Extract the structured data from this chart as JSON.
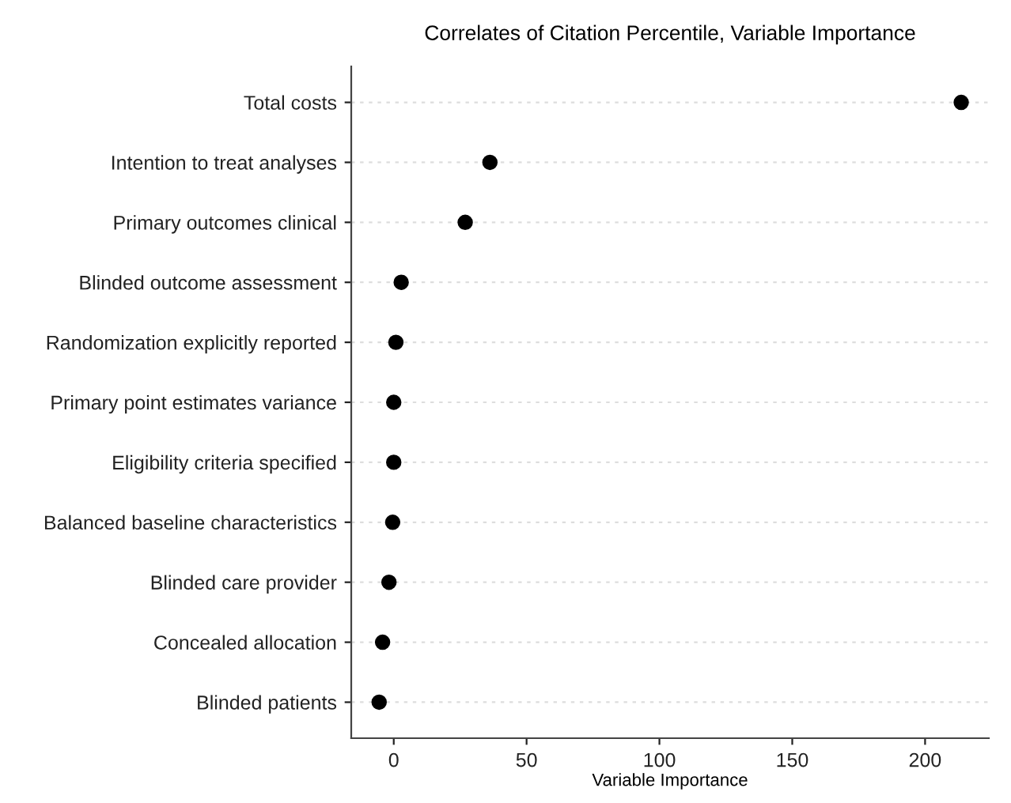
{
  "chart_data": {
    "type": "scatter",
    "title": "Correlates of Citation Percentile, Variable Importance",
    "xlabel": "Variable Importance",
    "orientation": "horizontal",
    "categories": [
      "Total costs",
      "Intention to treat analyses",
      "Primary outcomes clinical",
      "Blinded outcome assessment",
      "Randomization explicitly reported",
      "Primary point estimates variance",
      "Eligibility criteria specified",
      "Balanced baseline characteristics",
      "Blinded care provider",
      "Concealed allocation",
      "Blinded patients"
    ],
    "values": [
      213.6,
      36.2,
      26.9,
      2.8,
      0.8,
      0,
      0,
      -0.4,
      -1.8,
      -4.2,
      -5.5
    ],
    "color": "#000000",
    "marker": "circle",
    "xlim": [
      -16,
      224
    ],
    "xticks": [
      0,
      50,
      100,
      150,
      200
    ],
    "grid": "y"
  }
}
